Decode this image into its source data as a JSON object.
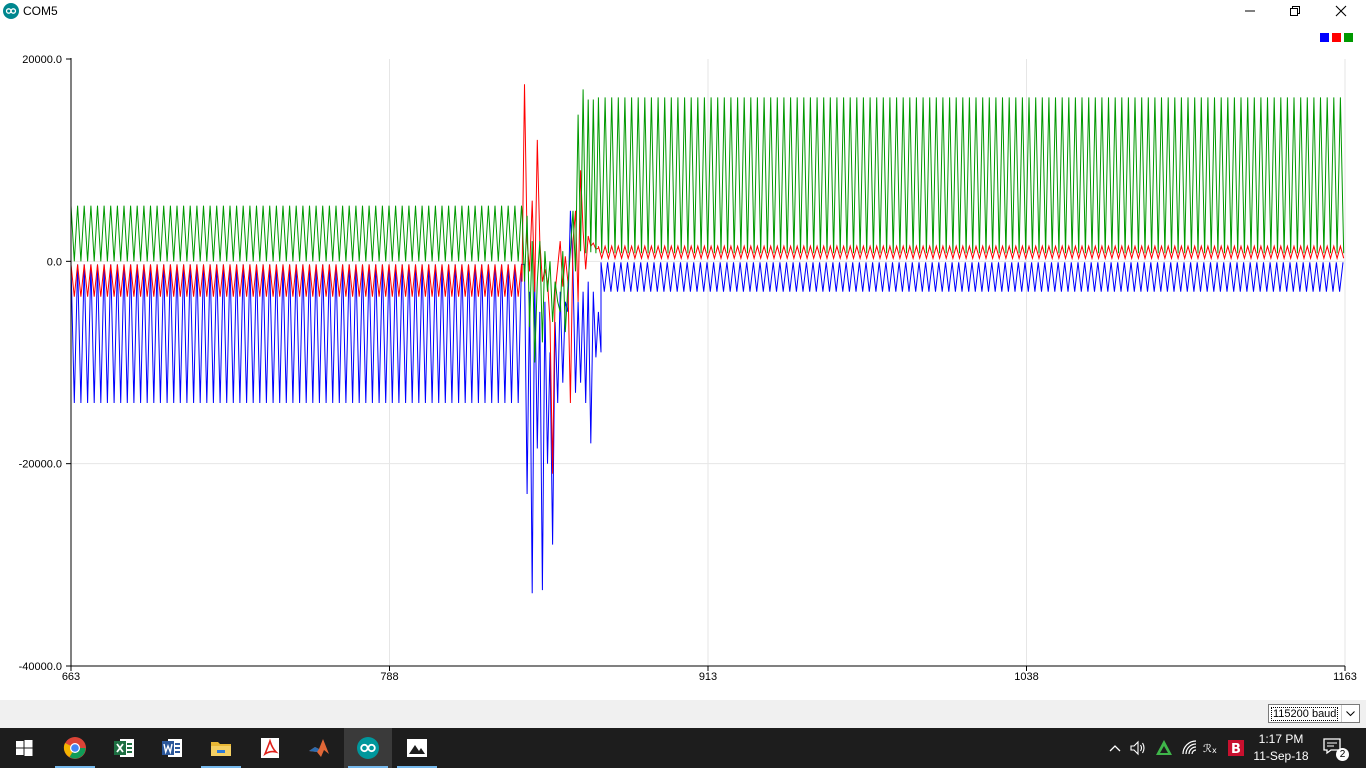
{
  "window": {
    "title": "COM5",
    "icon": "arduino-icon"
  },
  "controls": {
    "minimize": "minimize-icon",
    "maximize": "restore-icon",
    "close": "close-icon"
  },
  "legend": {
    "colors": [
      "#0000ff",
      "#ff0000",
      "#009900"
    ]
  },
  "chart_data": {
    "type": "line",
    "title": "",
    "xlabel": "",
    "ylabel": "",
    "xlim": [
      663,
      1163
    ],
    "ylim": [
      -40000,
      20000
    ],
    "x_ticks": [
      "663",
      "788",
      "913",
      "1038",
      "1163"
    ],
    "y_ticks": [
      "20000.0",
      "0.0",
      "-20000.0",
      "-40000.0"
    ],
    "grid": true,
    "legend_position": "top-right",
    "series": [
      {
        "color": "#0000ff",
        "segments": [
          {
            "x_start": 663,
            "x_end": 841,
            "low": -14000,
            "high": -300,
            "period": 2.6
          },
          {
            "x_start": 841,
            "x_end": 871,
            "points": [
              [
                841,
                -300
              ],
              [
                842,
                -23000
              ],
              [
                843,
                -3000
              ],
              [
                844,
                -32800
              ],
              [
                845,
                -2000
              ],
              [
                846,
                -18500
              ],
              [
                847,
                -5000
              ],
              [
                848,
                -32500
              ],
              [
                849,
                -4000
              ],
              [
                850,
                -20000
              ],
              [
                851,
                -9000
              ],
              [
                852,
                -28000
              ],
              [
                853,
                -6000
              ],
              [
                854,
                -14000
              ],
              [
                855,
                -3000
              ],
              [
                856,
                -12000
              ],
              [
                857,
                -4000
              ],
              [
                858,
                -5000
              ],
              [
                859,
                5000
              ],
              [
                860,
                -1000
              ],
              [
                861,
                -13000
              ],
              [
                862,
                -4000
              ],
              [
                863,
                -12000
              ],
              [
                864,
                -3000
              ],
              [
                865,
                -14000
              ],
              [
                866,
                -2000
              ],
              [
                867,
                -18000
              ],
              [
                868,
                -3000
              ],
              [
                869,
                -9500
              ],
              [
                870,
                -5000
              ],
              [
                871,
                -9000
              ]
            ]
          },
          {
            "x_start": 871,
            "x_end": 1163,
            "low": -3000,
            "high": -100,
            "period": 2.6
          }
        ]
      },
      {
        "color": "#ff0000",
        "segments": [
          {
            "x_start": 663,
            "x_end": 840,
            "low": -3500,
            "high": -300,
            "period": 2.6
          },
          {
            "x_start": 840,
            "x_end": 870,
            "points": [
              [
                840,
                -2000
              ],
              [
                841,
                17500
              ],
              [
                842,
                2000
              ],
              [
                843,
                -1000
              ],
              [
                844,
                6000
              ],
              [
                845,
                -3000
              ],
              [
                846,
                12000
              ],
              [
                847,
                2000
              ],
              [
                848,
                -2000
              ],
              [
                849,
                -800
              ],
              [
                850,
                -2000
              ],
              [
                851,
                -6000
              ],
              [
                852,
                -21000
              ],
              [
                853,
                -3000
              ],
              [
                854,
                -500
              ],
              [
                855,
                2000
              ],
              [
                856,
                -2500
              ],
              [
                857,
                500
              ],
              [
                858,
                -2000
              ],
              [
                859,
                -14000
              ],
              [
                860,
                2000
              ],
              [
                861,
                5000
              ],
              [
                862,
                -4000
              ],
              [
                863,
                9000
              ],
              [
                864,
                3000
              ],
              [
                865,
                -800
              ],
              [
                866,
                2500
              ],
              [
                867,
                1500
              ],
              [
                868,
                1800
              ],
              [
                869,
                1200
              ],
              [
                870,
                1300
              ]
            ]
          },
          {
            "x_start": 870,
            "x_end": 1163,
            "low": 300,
            "high": 1500,
            "period": 2.6
          }
        ]
      },
      {
        "color": "#009900",
        "segments": [
          {
            "x_start": 663,
            "x_end": 840,
            "low": 0,
            "high": 5500,
            "period": 2.6
          },
          {
            "x_start": 840,
            "x_end": 870,
            "points": [
              [
                840,
                5000
              ],
              [
                841,
                -2000
              ],
              [
                842,
                4500
              ],
              [
                843,
                -6500
              ],
              [
                844,
                2000
              ],
              [
                845,
                -10000
              ],
              [
                846,
                -2000
              ],
              [
                847,
                2000
              ],
              [
                848,
                -8000
              ],
              [
                849,
                1000
              ],
              [
                850,
                -3000
              ],
              [
                851,
                0
              ],
              [
                852,
                -6000
              ],
              [
                853,
                -2000
              ],
              [
                854,
                -4000
              ],
              [
                855,
                -5000
              ],
              [
                856,
                1000
              ],
              [
                857,
                -7000
              ],
              [
                858,
                -2500
              ],
              [
                859,
                1000
              ],
              [
                860,
                5000
              ],
              [
                861,
                -1000
              ],
              [
                862,
                14500
              ],
              [
                863,
                1000
              ],
              [
                864,
                17000
              ],
              [
                865,
                800
              ],
              [
                866,
                16000
              ],
              [
                867,
                900
              ],
              [
                868,
                16000
              ],
              [
                869,
                800
              ],
              [
                870,
                16000
              ]
            ]
          },
          {
            "x_start": 870,
            "x_end": 1163,
            "low": 800,
            "high": 16200,
            "period": 2.6
          }
        ]
      }
    ]
  },
  "footer": {
    "baud": "115200 baud"
  },
  "taskbar": {
    "apps": [
      "windows-start-icon",
      "chrome-icon",
      "excel-icon",
      "word-icon",
      "file-explorer-icon",
      "acrobat-icon",
      "matlab-icon",
      "arduino-icon",
      "photos-icon"
    ],
    "tray": [
      "chevron-up-icon",
      "volume-icon",
      "nvidia-icon",
      "wifi-icon",
      "ime-icon",
      "bitdefender-icon"
    ],
    "time": "1:17 PM",
    "date": "11-Sep-18",
    "notification_count": "2"
  }
}
